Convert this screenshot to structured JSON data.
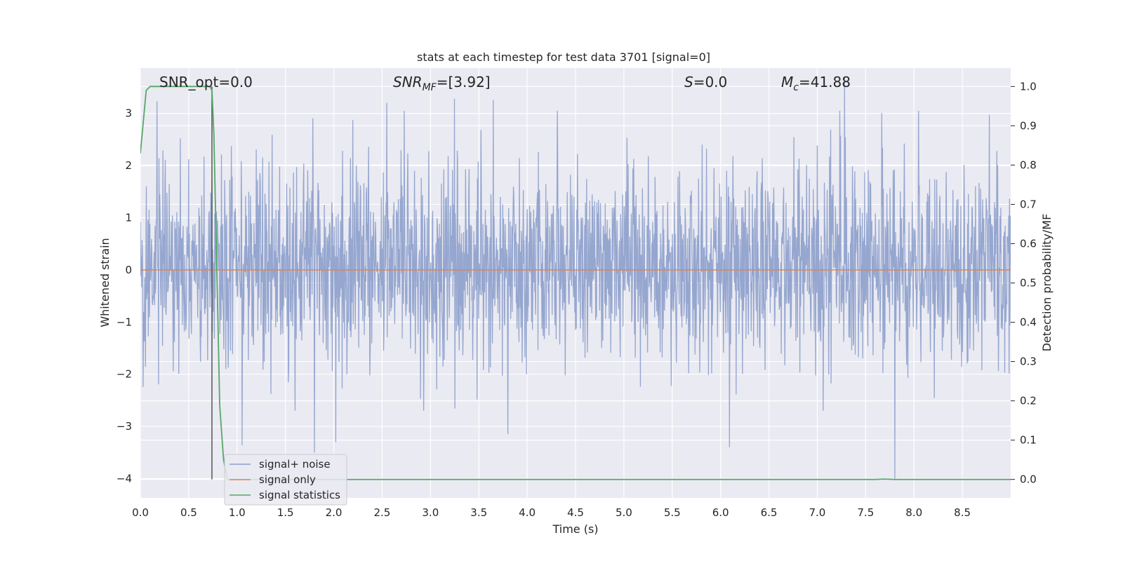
{
  "chart_data": {
    "type": "line",
    "title": "stats at each timestep for test data 3701 [signal=0]",
    "xlabel": "Time (s)",
    "ylabel": "Whitened strain",
    "y2label": "Detection probability/MF",
    "xlim": [
      0.0,
      9.0
    ],
    "ylim": [
      -4.37,
      3.87
    ],
    "y2lim": [
      -0.047,
      1.047
    ],
    "xticks": [
      "0.0",
      "0.5",
      "1.0",
      "1.5",
      "2.0",
      "2.5",
      "3.0",
      "3.5",
      "4.0",
      "4.5",
      "5.0",
      "5.5",
      "6.0",
      "6.5",
      "7.0",
      "7.5",
      "8.0",
      "8.5"
    ],
    "yticks": [
      "3",
      "2",
      "1",
      "0",
      "−1",
      "−2",
      "−3",
      "−4"
    ],
    "y2ticks": [
      "1.0",
      "0.9",
      "0.8",
      "0.7",
      "0.6",
      "0.5",
      "0.4",
      "0.3",
      "0.2",
      "0.1",
      "0.0"
    ],
    "grid": true,
    "legend_position": "lower-left",
    "annotations": {
      "snr_opt": "SNR_opt=0.0",
      "snr_mf_main": "SNR",
      "snr_mf_sub": "MF",
      "snr_mf_value": "=[3.92]",
      "s_main": "S",
      "s_value": "=0.0",
      "mc_main": "M",
      "mc_sub": "c",
      "mc_value": "=41.88"
    },
    "marker_time": 0.74,
    "series": [
      {
        "name": "signal+ noise",
        "color": "#8c9fcb",
        "description": "whitened noise, roughly -2.5 to 3.3 with occasional spikes",
        "lower_spikes": [
          {
            "x": 1.05,
            "y": -3.36
          },
          {
            "x": 1.8,
            "y": -3.5
          },
          {
            "x": 2.02,
            "y": -3.3
          },
          {
            "x": 3.8,
            "y": -3.15
          },
          {
            "x": 6.09,
            "y": -3.4
          },
          {
            "x": 7.8,
            "y": -4.0
          }
        ],
        "upper_spikes": [
          {
            "x": 0.17,
            "y": 3.23
          },
          {
            "x": 2.55,
            "y": 3.2
          },
          {
            "x": 3.25,
            "y": 3.28
          },
          {
            "x": 3.65,
            "y": 3.26
          },
          {
            "x": 7.28,
            "y": 3.68
          }
        ]
      },
      {
        "name": "signal only",
        "color": "#dd8452",
        "x": [
          0.0,
          9.0
        ],
        "y": [
          0.0,
          0.0
        ]
      },
      {
        "name": "signal statistics",
        "color": "#55a868",
        "axis": "right",
        "x": [
          0.0,
          0.06,
          0.1,
          0.72,
          0.74,
          0.76,
          0.8,
          0.82,
          0.86,
          0.9,
          7.6,
          7.7,
          7.8,
          9.0
        ],
        "y": [
          0.83,
          0.99,
          1.0,
          1.0,
          0.99,
          0.88,
          0.43,
          0.19,
          0.05,
          0.0,
          0.0,
          0.001,
          0.0,
          0.0
        ]
      }
    ]
  }
}
